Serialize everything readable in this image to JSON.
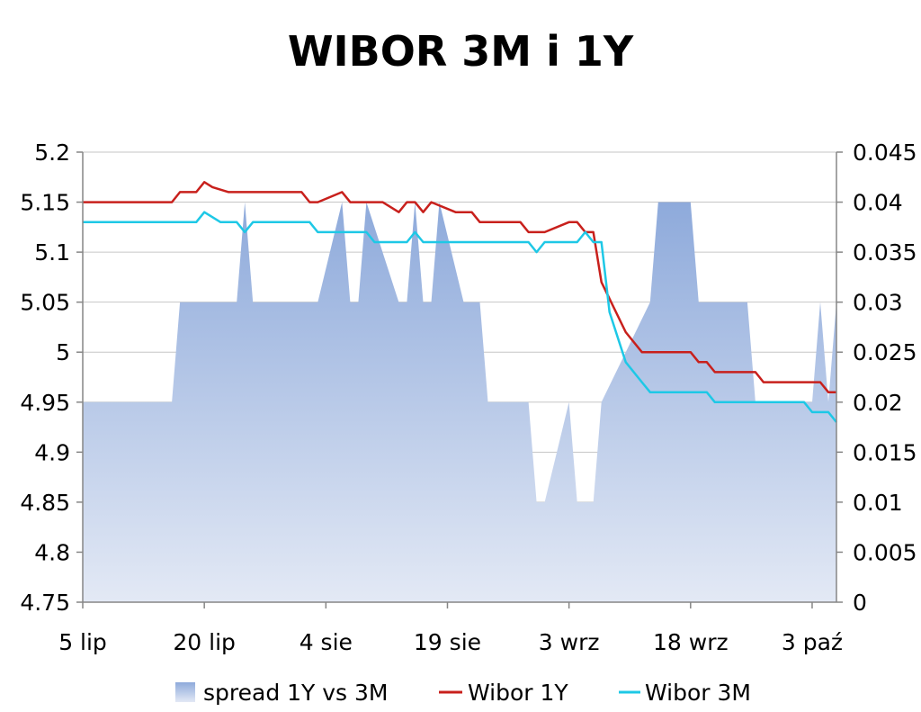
{
  "chart_data": {
    "type": "line",
    "title": "WIBOR 3M i 1Y",
    "xlabel": "",
    "ylabel": "",
    "x_tick_labels": [
      "5 lip",
      "20 lip",
      "4 sie",
      "19 sie",
      "3 wrz",
      "18 wrz",
      "3 paź"
    ],
    "y_left": {
      "min": 4.75,
      "max": 5.2,
      "ticks": [
        "4.75",
        "4.8",
        "4.85",
        "4.9",
        "4.95",
        "5",
        "5.05",
        "5.1",
        "5.15",
        "5.2"
      ]
    },
    "y_right": {
      "min": 0,
      "max": 0.045,
      "ticks": [
        "0",
        "0.005",
        "0.01",
        "0.015",
        "0.02",
        "0.025",
        "0.03",
        "0.035",
        "0.04",
        "0.045"
      ]
    },
    "x_range": {
      "min": 0,
      "max": 93
    },
    "grid": true,
    "legend_position": "bottom",
    "series": [
      {
        "name": "spread 1Y vs 3M",
        "kind": "area",
        "axis": "right",
        "color": "#9db5df",
        "points": [
          [
            0,
            0.02
          ],
          [
            11,
            0.02
          ],
          [
            12,
            0.03
          ],
          [
            19,
            0.03
          ],
          [
            20,
            0.04
          ],
          [
            21,
            0.03
          ],
          [
            29,
            0.03
          ],
          [
            32,
            0.04
          ],
          [
            33,
            0.03
          ],
          [
            34,
            0.03
          ],
          [
            35,
            0.04
          ],
          [
            39,
            0.03
          ],
          [
            40,
            0.03
          ],
          [
            41,
            0.04
          ],
          [
            42,
            0.03
          ],
          [
            43,
            0.03
          ],
          [
            44,
            0.04
          ],
          [
            47,
            0.03
          ],
          [
            49,
            0.03
          ],
          [
            50,
            0.02
          ],
          [
            55,
            0.02
          ],
          [
            56,
            0.01
          ],
          [
            57,
            0.01
          ],
          [
            60,
            0.02
          ],
          [
            61,
            0.01
          ],
          [
            63,
            0.01
          ],
          [
            64,
            0.02
          ],
          [
            70,
            0.03
          ],
          [
            71,
            0.04
          ],
          [
            75,
            0.04
          ],
          [
            76,
            0.03
          ],
          [
            82,
            0.03
          ],
          [
            83,
            0.02
          ],
          [
            90,
            0.02
          ],
          [
            91,
            0.03
          ],
          [
            92,
            0.02
          ],
          [
            93,
            0.03
          ]
        ]
      },
      {
        "name": "Wibor 1Y",
        "kind": "line",
        "axis": "left",
        "color": "#c8201c",
        "points": [
          [
            0,
            5.15
          ],
          [
            11,
            5.15
          ],
          [
            12,
            5.16
          ],
          [
            14,
            5.16
          ],
          [
            15,
            5.17
          ],
          [
            16,
            5.165
          ],
          [
            18,
            5.16
          ],
          [
            27,
            5.16
          ],
          [
            28,
            5.15
          ],
          [
            29,
            5.15
          ],
          [
            32,
            5.16
          ],
          [
            33,
            5.15
          ],
          [
            37,
            5.15
          ],
          [
            39,
            5.14
          ],
          [
            40,
            5.15
          ],
          [
            41,
            5.15
          ],
          [
            42,
            5.14
          ],
          [
            43,
            5.15
          ],
          [
            46,
            5.14
          ],
          [
            48,
            5.14
          ],
          [
            49,
            5.13
          ],
          [
            54,
            5.13
          ],
          [
            55,
            5.12
          ],
          [
            57,
            5.12
          ],
          [
            60,
            5.13
          ],
          [
            61,
            5.13
          ],
          [
            62,
            5.12
          ],
          [
            63,
            5.12
          ],
          [
            64,
            5.07
          ],
          [
            67,
            5.02
          ],
          [
            69,
            5.0
          ],
          [
            75,
            5.0
          ],
          [
            76,
            4.99
          ],
          [
            77,
            4.99
          ],
          [
            78,
            4.98
          ],
          [
            83,
            4.98
          ],
          [
            84,
            4.97
          ],
          [
            91,
            4.97
          ],
          [
            92,
            4.96
          ],
          [
            93,
            4.96
          ]
        ]
      },
      {
        "name": "Wibor 3M",
        "kind": "line",
        "axis": "left",
        "color": "#1ec8e6",
        "points": [
          [
            0,
            5.13
          ],
          [
            14,
            5.13
          ],
          [
            15,
            5.14
          ],
          [
            17,
            5.13
          ],
          [
            19,
            5.13
          ],
          [
            20,
            5.12
          ],
          [
            21,
            5.13
          ],
          [
            28,
            5.13
          ],
          [
            29,
            5.12
          ],
          [
            35,
            5.12
          ],
          [
            36,
            5.11
          ],
          [
            40,
            5.11
          ],
          [
            41,
            5.12
          ],
          [
            42,
            5.11
          ],
          [
            55,
            5.11
          ],
          [
            56,
            5.1
          ],
          [
            57,
            5.11
          ],
          [
            61,
            5.11
          ],
          [
            62,
            5.12
          ],
          [
            63,
            5.11
          ],
          [
            64,
            5.11
          ],
          [
            65,
            5.04
          ],
          [
            67,
            4.99
          ],
          [
            69,
            4.97
          ],
          [
            70,
            4.96
          ],
          [
            77,
            4.96
          ],
          [
            78,
            4.95
          ],
          [
            89,
            4.95
          ],
          [
            90,
            4.94
          ],
          [
            92,
            4.94
          ],
          [
            93,
            4.93
          ]
        ]
      }
    ]
  }
}
